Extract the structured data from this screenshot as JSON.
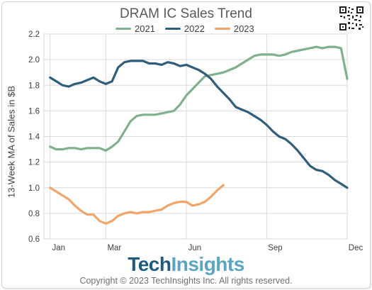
{
  "chart_data": {
    "type": "line",
    "title": "DRAM IC Sales Trend",
    "ylabel": "13-Week MA of Sales in $B",
    "xlabel": "",
    "ylim": [
      0.6,
      2.2
    ],
    "yticks": [
      "0.6",
      "0.8",
      "1.0",
      "1.2",
      "1.4",
      "1.6",
      "1.8",
      "2.0",
      "2.2"
    ],
    "xticks": [
      {
        "label": "Jan",
        "week": 1
      },
      {
        "label": "Mar",
        "week": 10
      },
      {
        "label": "Jun",
        "week": 23
      },
      {
        "label": "Sep",
        "week": 36
      },
      {
        "label": "Dec",
        "week": 49
      }
    ],
    "xlim": [
      0,
      49
    ],
    "grid": true,
    "legend_position": "top",
    "series": [
      {
        "name": "2021",
        "color": "#7fb18c",
        "weeks": [
          1,
          2,
          3,
          4,
          5,
          6,
          7,
          8,
          9,
          10,
          11,
          12,
          13,
          14,
          15,
          16,
          17,
          18,
          19,
          20,
          21,
          22,
          23,
          24,
          25,
          26,
          27,
          28,
          29,
          30,
          31,
          32,
          33,
          34,
          35,
          36,
          37,
          38,
          39,
          40,
          41,
          42,
          43,
          44,
          45,
          46,
          47,
          48,
          49
        ],
        "values": [
          1.32,
          1.3,
          1.3,
          1.31,
          1.31,
          1.3,
          1.31,
          1.31,
          1.31,
          1.29,
          1.32,
          1.36,
          1.44,
          1.52,
          1.56,
          1.57,
          1.57,
          1.57,
          1.58,
          1.59,
          1.6,
          1.65,
          1.72,
          1.77,
          1.82,
          1.87,
          1.88,
          1.89,
          1.9,
          1.92,
          1.94,
          1.97,
          2.0,
          2.03,
          2.04,
          2.04,
          2.04,
          2.03,
          2.04,
          2.06,
          2.07,
          2.08,
          2.09,
          2.1,
          2.09,
          2.1,
          2.1,
          2.09,
          1.85
        ]
      },
      {
        "name": "2022",
        "color": "#2f5d7c",
        "weeks": [
          1,
          2,
          3,
          4,
          5,
          6,
          7,
          8,
          9,
          10,
          11,
          12,
          13,
          14,
          15,
          16,
          17,
          18,
          19,
          20,
          21,
          22,
          23,
          24,
          25,
          26,
          27,
          28,
          29,
          30,
          31,
          32,
          33,
          34,
          35,
          36,
          37,
          38,
          39,
          40,
          41,
          42,
          43,
          44,
          45,
          46,
          47,
          48,
          49
        ],
        "values": [
          1.86,
          1.83,
          1.8,
          1.79,
          1.81,
          1.82,
          1.84,
          1.86,
          1.83,
          1.81,
          1.83,
          1.94,
          1.98,
          1.99,
          1.99,
          1.99,
          1.97,
          1.97,
          1.96,
          1.98,
          1.97,
          1.95,
          1.96,
          1.94,
          1.92,
          1.89,
          1.85,
          1.79,
          1.74,
          1.69,
          1.63,
          1.61,
          1.59,
          1.56,
          1.53,
          1.49,
          1.44,
          1.4,
          1.38,
          1.34,
          1.29,
          1.23,
          1.17,
          1.14,
          1.13,
          1.1,
          1.06,
          1.03,
          1.0
        ]
      },
      {
        "name": "2023",
        "color": "#f0a56a",
        "weeks": [
          1,
          2,
          3,
          4,
          5,
          6,
          7,
          8,
          9,
          10,
          11,
          12,
          13,
          14,
          15,
          16,
          17,
          18,
          19,
          20,
          21,
          22,
          23,
          24,
          25,
          26,
          27,
          28,
          29
        ],
        "values": [
          1.0,
          0.97,
          0.94,
          0.91,
          0.86,
          0.82,
          0.79,
          0.79,
          0.74,
          0.72,
          0.74,
          0.78,
          0.8,
          0.81,
          0.8,
          0.81,
          0.81,
          0.82,
          0.83,
          0.86,
          0.88,
          0.89,
          0.89,
          0.86,
          0.87,
          0.89,
          0.93,
          0.98,
          1.02
        ]
      }
    ]
  },
  "branding": {
    "logo_part1": "Tech",
    "logo_part2": "Insights",
    "copyright": "Copyright © 2023 TechInsights Inc.  All rights reserved."
  },
  "colors": {
    "grid": "#d9d9d9",
    "axis_text": "#404040",
    "brand_dark": "#1f5b7f",
    "brand_light": "#5aa4c4"
  },
  "icons": {
    "qr": "qr-code-icon"
  }
}
